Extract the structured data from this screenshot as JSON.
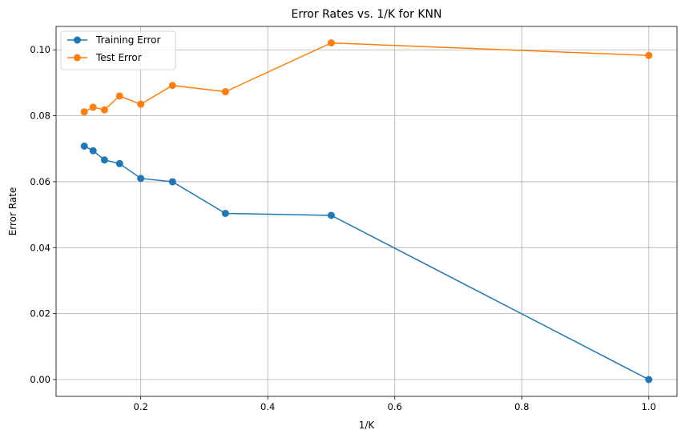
{
  "chart_data": {
    "type": "line",
    "title": "Error Rates vs. 1/K for KNN",
    "xlabel": "1/K",
    "ylabel": "Error Rate",
    "xlim": [
      0.0667,
      1.0444
    ],
    "ylim": [
      -0.0051,
      0.1071
    ],
    "xticks": [
      0.2,
      0.4,
      0.6,
      0.8,
      1.0
    ],
    "xtick_labels": [
      "0.2",
      "0.4",
      "0.6",
      "0.8",
      "1.0"
    ],
    "yticks": [
      0.0,
      0.02,
      0.04,
      0.06,
      0.08,
      0.1
    ],
    "ytick_labels": [
      "0.00",
      "0.02",
      "0.04",
      "0.06",
      "0.08",
      "0.10"
    ],
    "grid": true,
    "legend": "upper-left",
    "x": [
      0.1111,
      0.125,
      0.1429,
      0.1667,
      0.2,
      0.25,
      0.3333,
      0.5,
      1.0
    ],
    "series": [
      {
        "name": "Training Error",
        "color": "#1f77b4",
        "marker": "circle",
        "values": [
          0.0708,
          0.0694,
          0.0666,
          0.0655,
          0.061,
          0.06,
          0.0504,
          0.0498,
          0.0
        ]
      },
      {
        "name": "Test Error",
        "color": "#ff7f0e",
        "marker": "circle",
        "values": [
          0.0812,
          0.0826,
          0.0818,
          0.086,
          0.0835,
          0.0892,
          0.0873,
          0.1021,
          0.0983
        ]
      }
    ]
  }
}
